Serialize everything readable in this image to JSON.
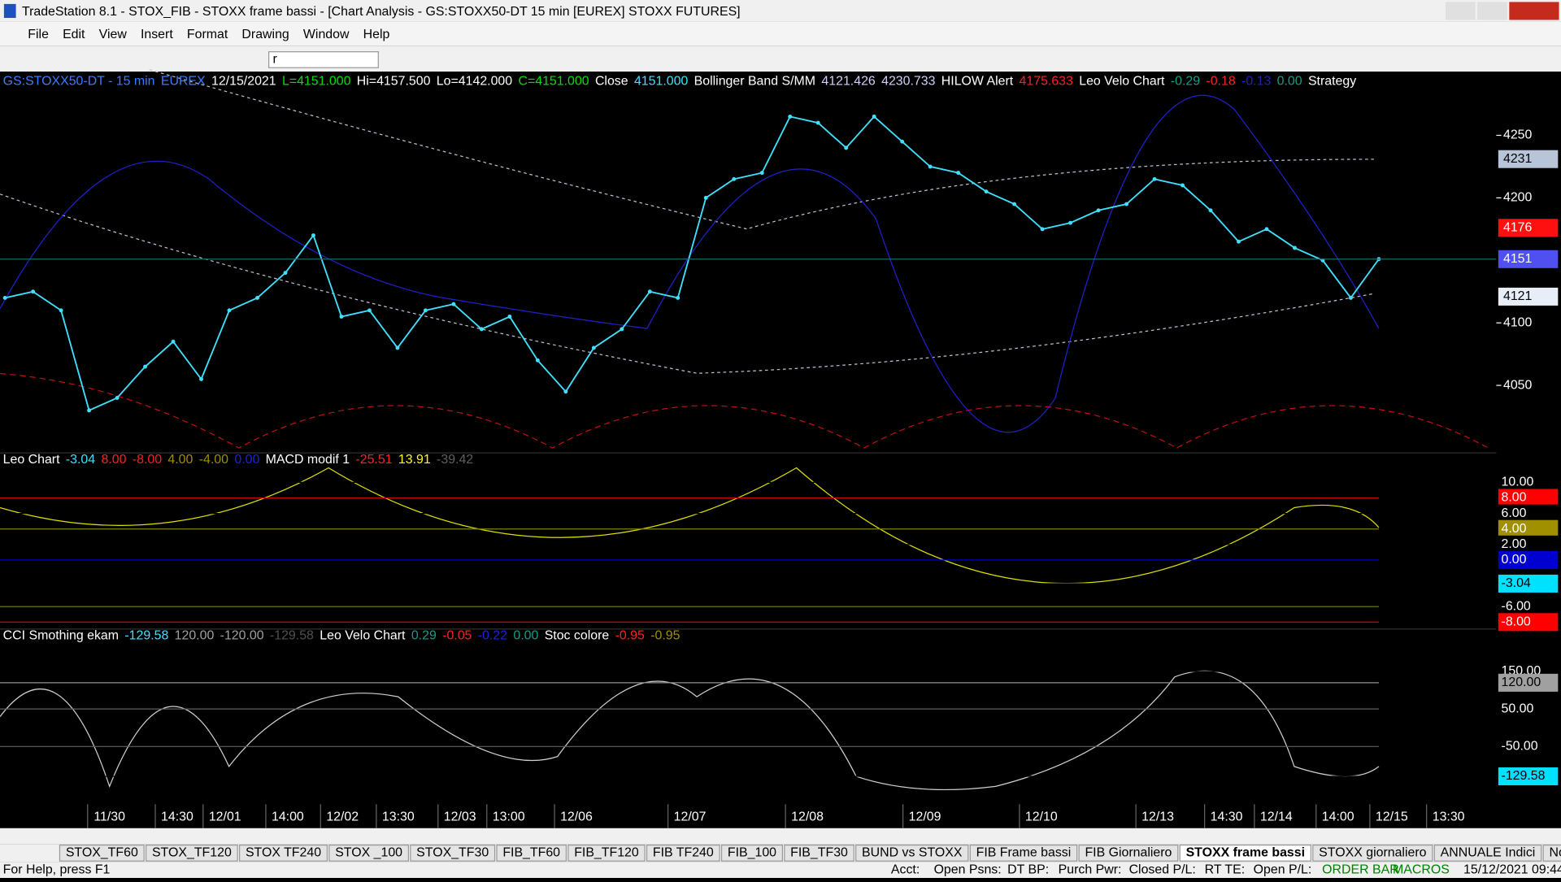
{
  "window": {
    "title": "TradeStation 8.1 - STOX_FIB - STOXX frame bassi - [Chart Analysis - GS:STOXX50-DT  15 min  [EUREX] STOXX FUTURES]",
    "menu": [
      "File",
      "Edit",
      "View",
      "Insert",
      "Format",
      "Drawing",
      "Window",
      "Help"
    ],
    "symbol_box": "r"
  },
  "header": [
    {
      "text": "GS:STOXX50-DT - 15 min",
      "color": "#3c7cff"
    },
    {
      "text": "EUREX",
      "color": "#3c7cff"
    },
    {
      "text": "12/15/2021",
      "color": "#ffffff"
    },
    {
      "text": "L=4151.000",
      "color": "#00e000"
    },
    {
      "text": "Hi=4157.500",
      "color": "#ffffff"
    },
    {
      "text": "Lo=4142.000",
      "color": "#ffffff"
    },
    {
      "text": "C=4151.000",
      "color": "#00e000"
    },
    {
      "text": "Close",
      "color": "#ffffff"
    },
    {
      "text": "4151.000",
      "color": "#40e0ff"
    },
    {
      "text": "Bollinger Band S/MM",
      "color": "#ffffff"
    },
    {
      "text": "4121.426",
      "color": "#d0d0ff"
    },
    {
      "text": "4230.733",
      "color": "#d0d0ff"
    },
    {
      "text": "HILOW Alert",
      "color": "#ffffff"
    },
    {
      "text": "4175.633",
      "color": "#ff2020"
    },
    {
      "text": "Leo Velo Chart",
      "color": "#ffffff"
    },
    {
      "text": "-0.29",
      "color": "#1a9a8a"
    },
    {
      "text": "-0.18",
      "color": "#ff2020"
    },
    {
      "text": "-0.13",
      "color": "#2020c0"
    },
    {
      "text": "0.00",
      "color": "#1a9a8a"
    },
    {
      "text": "Strategy",
      "color": "#ffffff"
    }
  ],
  "chart_data": {
    "type": "line",
    "color": "#40e0ff",
    "ylim": [
      3996,
      4285
    ],
    "yticks": [
      4050,
      4100,
      4200,
      4250
    ],
    "values": [
      4120,
      4125,
      4110,
      4030,
      4040,
      4065,
      4085,
      4055,
      4110,
      4120,
      4140,
      4170,
      4105,
      4110,
      4080,
      4110,
      4115,
      4095,
      4105,
      4070,
      4045,
      4080,
      4095,
      4125,
      4120,
      4200,
      4215,
      4220,
      4265,
      4260,
      4240,
      4265,
      4245,
      4225,
      4220,
      4205,
      4195,
      4175,
      4180,
      4190,
      4195,
      4215,
      4210,
      4190,
      4165,
      4175,
      4160,
      4150,
      4120,
      4151
    ]
  },
  "price_labels": [
    4231,
    4176,
    4151,
    4121
  ],
  "price_label_colors": [
    {
      "bg": "#b8c4d8",
      "fg": "#000000"
    },
    {
      "bg": "#ff1010",
      "fg": "#ffffff"
    },
    {
      "bg": "#5050f0",
      "fg": "#ffffff"
    },
    {
      "bg": "#e8eef8",
      "fg": "#000000"
    }
  ],
  "macd_pane": {
    "header": [
      {
        "text": "Leo Chart",
        "color": "#ffffff"
      },
      {
        "text": "-3.04",
        "color": "#40e0ff"
      },
      {
        "text": "8.00",
        "color": "#ff2020"
      },
      {
        "text": "-8.00",
        "color": "#ff2020"
      },
      {
        "text": "4.00",
        "color": "#a09000"
      },
      {
        "text": "-4.00",
        "color": "#a09000"
      },
      {
        "text": "0.00",
        "color": "#2020e0"
      },
      {
        "text": "MACD modif 1",
        "color": "#ffffff"
      },
      {
        "text": "-25.51",
        "color": "#ff2020"
      },
      {
        "text": "13.91",
        "color": "#ffff00"
      },
      {
        "text": "-39.42",
        "color": "#606060"
      }
    ],
    "ylim": [
      -8.9,
      13.8
    ],
    "yticks": [
      {
        "value": 10,
        "label": "10.00"
      },
      {
        "value": 8,
        "label": "8.00"
      },
      {
        "value": 6,
        "label": "6.00"
      },
      {
        "value": 4,
        "label": "4.00"
      },
      {
        "value": 2,
        "label": "2.00"
      },
      {
        "value": 0,
        "label": "0.00"
      },
      {
        "value": -3.04,
        "label": "-3.04"
      },
      {
        "value": -6,
        "label": "-6.00"
      },
      {
        "value": -8,
        "label": "-8.00"
      }
    ],
    "tick_colors": [
      {
        "bg": "#000000",
        "fg": "#ffffff",
        "line": "#000000"
      },
      {
        "bg": "#ff0000",
        "fg": "#ffffff",
        "line": "#d00000"
      },
      {
        "bg": "#000000",
        "fg": "#ffffff",
        "line": "#000000"
      },
      {
        "bg": "#a09000",
        "fg": "#ffffff",
        "line": "#808000"
      },
      {
        "bg": "#000000",
        "fg": "#ffffff",
        "line": "#000000"
      },
      {
        "bg": "#0000d0",
        "fg": "#ffffff",
        "line": "#0000c0"
      },
      {
        "bg": "#00e0ff",
        "fg": "#000000",
        "line": "#000000"
      },
      {
        "bg": "#000000",
        "fg": "#ffffff",
        "line": "#808000"
      },
      {
        "bg": "#ff0000",
        "fg": "#ffffff",
        "line": "#d00000"
      }
    ]
  },
  "cci_pane": {
    "header": [
      {
        "text": "CCI Smothing ekam",
        "color": "#ffffff"
      },
      {
        "text": "-129.58",
        "color": "#40e0ff"
      },
      {
        "text": "120.00",
        "color": "#a0a0a0"
      },
      {
        "text": "-120.00",
        "color": "#a0a0a0"
      },
      {
        "text": "-129.58",
        "color": "#505050"
      },
      {
        "text": "Leo Velo Chart",
        "color": "#ffffff"
      },
      {
        "text": "0.29",
        "color": "#1a9a8a"
      },
      {
        "text": "-0.05",
        "color": "#ff2020"
      },
      {
        "text": "-0.22",
        "color": "#2020e0"
      },
      {
        "text": "0.00",
        "color": "#1a9a8a"
      },
      {
        "text": "Stoc colore",
        "color": "#ffffff"
      },
      {
        "text": "-0.95",
        "color": "#ff2020"
      },
      {
        "text": "-0.95",
        "color": "#a09000"
      }
    ],
    "ylim": [
      -204,
      263
    ],
    "yticks": [
      {
        "value": 150,
        "label": "150.00"
      },
      {
        "value": 120,
        "label": "120.00"
      },
      {
        "value": 50,
        "label": "50.00"
      },
      {
        "value": -50,
        "label": "-50.00"
      },
      {
        "value": -129.58,
        "label": "-129.58"
      }
    ],
    "tick_colors": [
      {
        "bg": "#000000",
        "fg": "#ffffff",
        "line": "#000000"
      },
      {
        "bg": "#a0a0a0",
        "fg": "#000000",
        "line": "#909090"
      },
      {
        "bg": "#000000",
        "fg": "#ffffff",
        "line": "#606060"
      },
      {
        "bg": "#000000",
        "fg": "#ffffff",
        "line": "#606060"
      },
      {
        "bg": "#00e0ff",
        "fg": "#000000",
        "line": "#000000"
      }
    ]
  },
  "time_labels": [
    "11/30",
    "14:30",
    "12/01",
    "14:00",
    "12/02",
    "13:30",
    "12/03",
    "13:00",
    "12/06",
    "12/07",
    "12/08",
    "12/09",
    "12/10",
    "12/13",
    "14:30",
    "12/14",
    "14:00",
    "12/15",
    "13:30"
  ],
  "tabs": [
    "STOX_TF60",
    "STOX_TF120",
    "STOX TF240",
    "STOX _100",
    "STOX_TF30",
    "FIB_TF60",
    "FIB_TF120",
    "FIB TF240",
    "FIB_100",
    "FIB_TF30",
    "BUND vs STOXX",
    "FIB Frame bassi",
    "FIB Giornaliero",
    "STOXX frame bassi",
    "STOXX giornaliero",
    "ANNUALE Indici",
    "No PREZZI"
  ],
  "status": {
    "help": "For Help, press F1",
    "fields": [
      "Acct:",
      "Open Psns:",
      "DT BP:",
      "Purch Pwr:",
      "Closed P/L:",
      "RT TE:",
      "Open P/L:"
    ],
    "order_bar": "ORDER BAR",
    "macros": "MACROS",
    "datetime": "15/12/2021 09:44"
  }
}
